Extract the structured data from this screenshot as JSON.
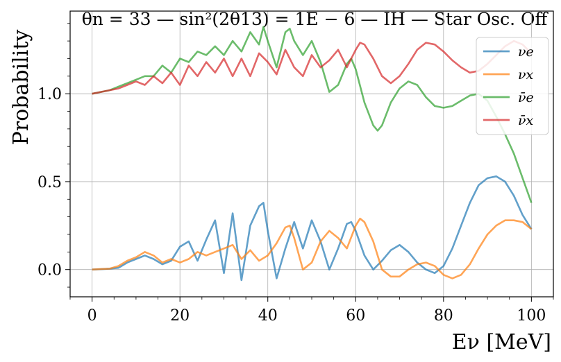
{
  "chart_data": {
    "type": "line",
    "title": "θn = 33 — sin²(2θ13) = 1E − 6 — IH — Star Osc. Off",
    "xlabel": "Eν [MeV]",
    "ylabel": "Probability",
    "xlim": [
      -5,
      105
    ],
    "ylim": [
      -0.155,
      1.47
    ],
    "xticks": [
      0,
      20,
      40,
      60,
      80,
      100
    ],
    "xtick_labels": [
      "0",
      "20",
      "40",
      "60",
      "80",
      "100"
    ],
    "yticks": [
      0.0,
      0.5,
      1.0
    ],
    "ytick_labels": [
      "0.0",
      "0.5",
      "1.0"
    ],
    "grid": true,
    "legend_position": "top-right",
    "series": [
      {
        "name": "νe",
        "color": "#1f77b4",
        "points": [
          [
            0,
            0.0
          ],
          [
            2,
            0.002
          ],
          [
            4,
            0.005
          ],
          [
            6,
            0.01
          ],
          [
            8,
            0.04
          ],
          [
            10,
            0.06
          ],
          [
            12,
            0.08
          ],
          [
            14,
            0.06
          ],
          [
            16,
            0.03
          ],
          [
            18,
            0.05
          ],
          [
            20,
            0.13
          ],
          [
            22,
            0.16
          ],
          [
            24,
            0.05
          ],
          [
            26,
            0.17
          ],
          [
            28,
            0.28
          ],
          [
            30,
            -0.02
          ],
          [
            32,
            0.32
          ],
          [
            34,
            -0.06
          ],
          [
            36,
            0.25
          ],
          [
            38,
            0.36
          ],
          [
            39,
            0.38
          ],
          [
            40,
            0.22
          ],
          [
            42,
            -0.05
          ],
          [
            44,
            0.12
          ],
          [
            46,
            0.27
          ],
          [
            48,
            0.12
          ],
          [
            50,
            0.28
          ],
          [
            52,
            0.16
          ],
          [
            54,
            0.0
          ],
          [
            56,
            0.12
          ],
          [
            58,
            0.26
          ],
          [
            59,
            0.27
          ],
          [
            60,
            0.22
          ],
          [
            62,
            0.08
          ],
          [
            64,
            0.0
          ],
          [
            66,
            0.05
          ],
          [
            68,
            0.11
          ],
          [
            70,
            0.14
          ],
          [
            72,
            0.1
          ],
          [
            74,
            0.04
          ],
          [
            76,
            0.0
          ],
          [
            78,
            -0.02
          ],
          [
            80,
            0.02
          ],
          [
            82,
            0.12
          ],
          [
            84,
            0.25
          ],
          [
            86,
            0.38
          ],
          [
            88,
            0.48
          ],
          [
            90,
            0.52
          ],
          [
            92,
            0.53
          ],
          [
            94,
            0.5
          ],
          [
            96,
            0.42
          ],
          [
            98,
            0.31
          ],
          [
            100,
            0.23
          ]
        ]
      },
      {
        "name": "νx",
        "color": "#ff7f0e",
        "points": [
          [
            0,
            0.0
          ],
          [
            2,
            0.003
          ],
          [
            4,
            0.005
          ],
          [
            6,
            0.02
          ],
          [
            8,
            0.05
          ],
          [
            10,
            0.07
          ],
          [
            12,
            0.1
          ],
          [
            14,
            0.08
          ],
          [
            16,
            0.04
          ],
          [
            18,
            0.06
          ],
          [
            20,
            0.04
          ],
          [
            22,
            0.06
          ],
          [
            24,
            0.1
          ],
          [
            26,
            0.08
          ],
          [
            28,
            0.1
          ],
          [
            30,
            0.12
          ],
          [
            32,
            0.14
          ],
          [
            34,
            0.06
          ],
          [
            36,
            0.11
          ],
          [
            38,
            0.05
          ],
          [
            40,
            0.08
          ],
          [
            42,
            0.15
          ],
          [
            44,
            0.24
          ],
          [
            45,
            0.25
          ],
          [
            46,
            0.18
          ],
          [
            48,
            0.0
          ],
          [
            50,
            0.04
          ],
          [
            52,
            0.16
          ],
          [
            54,
            0.22
          ],
          [
            56,
            0.18
          ],
          [
            58,
            0.12
          ],
          [
            60,
            0.25
          ],
          [
            61,
            0.29
          ],
          [
            62,
            0.27
          ],
          [
            64,
            0.16
          ],
          [
            66,
            0.0
          ],
          [
            68,
            -0.04
          ],
          [
            70,
            -0.04
          ],
          [
            72,
            0.0
          ],
          [
            74,
            0.03
          ],
          [
            76,
            0.04
          ],
          [
            78,
            0.02
          ],
          [
            80,
            -0.03
          ],
          [
            82,
            -0.05
          ],
          [
            84,
            -0.03
          ],
          [
            86,
            0.03
          ],
          [
            88,
            0.12
          ],
          [
            90,
            0.2
          ],
          [
            92,
            0.25
          ],
          [
            94,
            0.28
          ],
          [
            96,
            0.28
          ],
          [
            98,
            0.27
          ],
          [
            100,
            0.23
          ]
        ]
      },
      {
        "name": "ν̄e",
        "color": "#2ca02c",
        "points": [
          [
            0,
            1.0
          ],
          [
            2,
            1.01
          ],
          [
            4,
            1.02
          ],
          [
            6,
            1.04
          ],
          [
            8,
            1.06
          ],
          [
            10,
            1.08
          ],
          [
            12,
            1.1
          ],
          [
            14,
            1.1
          ],
          [
            16,
            1.16
          ],
          [
            18,
            1.12
          ],
          [
            20,
            1.2
          ],
          [
            22,
            1.18
          ],
          [
            24,
            1.24
          ],
          [
            26,
            1.22
          ],
          [
            28,
            1.27
          ],
          [
            30,
            1.22
          ],
          [
            32,
            1.3
          ],
          [
            34,
            1.24
          ],
          [
            36,
            1.35
          ],
          [
            38,
            1.28
          ],
          [
            39,
            1.38
          ],
          [
            40,
            1.3
          ],
          [
            42,
            1.15
          ],
          [
            44,
            1.35
          ],
          [
            45,
            1.37
          ],
          [
            46,
            1.3
          ],
          [
            48,
            1.22
          ],
          [
            50,
            1.3
          ],
          [
            52,
            1.18
          ],
          [
            54,
            1.01
          ],
          [
            56,
            1.05
          ],
          [
            58,
            1.17
          ],
          [
            59,
            1.2
          ],
          [
            60,
            1.14
          ],
          [
            62,
            0.95
          ],
          [
            64,
            0.82
          ],
          [
            65,
            0.79
          ],
          [
            66,
            0.82
          ],
          [
            68,
            0.95
          ],
          [
            70,
            1.03
          ],
          [
            72,
            1.07
          ],
          [
            74,
            1.05
          ],
          [
            76,
            0.98
          ],
          [
            78,
            0.93
          ],
          [
            80,
            0.92
          ],
          [
            82,
            0.93
          ],
          [
            84,
            0.96
          ],
          [
            86,
            0.99
          ],
          [
            88,
            1.0
          ],
          [
            90,
            0.96
          ],
          [
            92,
            0.87
          ],
          [
            94,
            0.77
          ],
          [
            96,
            0.66
          ],
          [
            98,
            0.52
          ],
          [
            100,
            0.38
          ]
        ]
      },
      {
        "name": "ν̄x",
        "color": "#d62728",
        "points": [
          [
            0,
            1.0
          ],
          [
            2,
            1.01
          ],
          [
            4,
            1.02
          ],
          [
            6,
            1.03
          ],
          [
            8,
            1.05
          ],
          [
            10,
            1.07
          ],
          [
            12,
            1.05
          ],
          [
            14,
            1.1
          ],
          [
            16,
            1.06
          ],
          [
            18,
            1.12
          ],
          [
            20,
            1.05
          ],
          [
            22,
            1.16
          ],
          [
            24,
            1.1
          ],
          [
            26,
            1.18
          ],
          [
            28,
            1.12
          ],
          [
            30,
            1.2
          ],
          [
            32,
            1.1
          ],
          [
            34,
            1.2
          ],
          [
            36,
            1.1
          ],
          [
            38,
            1.23
          ],
          [
            40,
            1.18
          ],
          [
            42,
            1.11
          ],
          [
            44,
            1.25
          ],
          [
            46,
            1.15
          ],
          [
            48,
            1.1
          ],
          [
            50,
            1.22
          ],
          [
            52,
            1.15
          ],
          [
            54,
            1.19
          ],
          [
            56,
            1.25
          ],
          [
            58,
            1.15
          ],
          [
            60,
            1.25
          ],
          [
            61,
            1.29
          ],
          [
            62,
            1.28
          ],
          [
            64,
            1.2
          ],
          [
            66,
            1.1
          ],
          [
            68,
            1.06
          ],
          [
            70,
            1.1
          ],
          [
            72,
            1.17
          ],
          [
            74,
            1.25
          ],
          [
            76,
            1.29
          ],
          [
            78,
            1.28
          ],
          [
            80,
            1.24
          ],
          [
            82,
            1.19
          ],
          [
            84,
            1.15
          ],
          [
            86,
            1.12
          ],
          [
            88,
            1.13
          ],
          [
            90,
            1.17
          ],
          [
            92,
            1.22
          ],
          [
            94,
            1.27
          ],
          [
            96,
            1.3
          ],
          [
            98,
            1.28
          ],
          [
            100,
            1.23
          ]
        ]
      }
    ]
  }
}
